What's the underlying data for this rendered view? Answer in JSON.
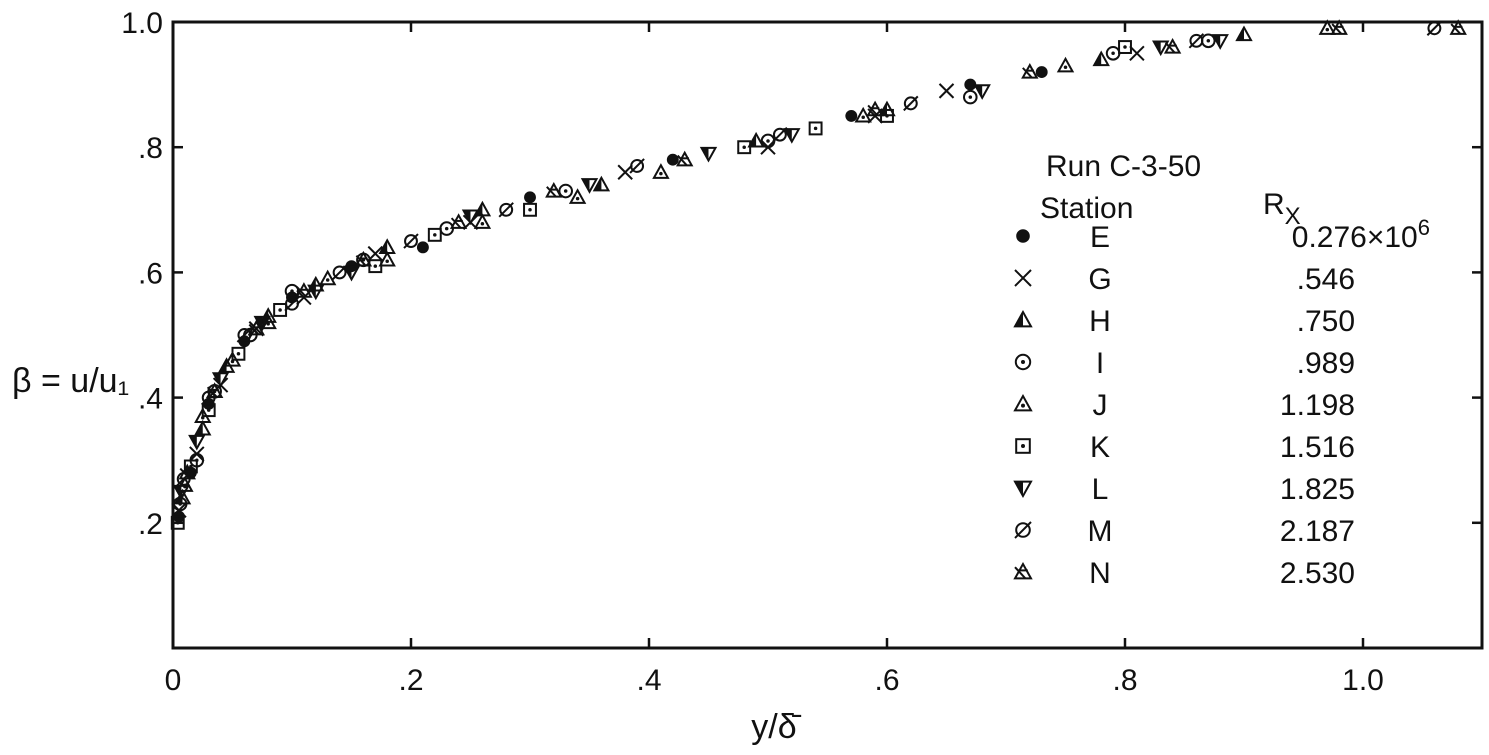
{
  "chart_data": {
    "type": "scatter",
    "title": "",
    "xlabel": "y/δ̄",
    "ylabel": "β = u/u₁",
    "xlim": [
      0,
      1.1
    ],
    "ylim": [
      0,
      1.0
    ],
    "grid": false,
    "x_ticks": [
      {
        "value": 0,
        "label": "0"
      },
      {
        "value": 0.2,
        "label": ".2"
      },
      {
        "value": 0.4,
        "label": ".4"
      },
      {
        "value": 0.6,
        "label": ".6"
      },
      {
        "value": 0.8,
        "label": ".8"
      },
      {
        "value": 1.0,
        "label": "1.0"
      }
    ],
    "y_ticks": [
      {
        "value": 0.2,
        "label": ".2"
      },
      {
        "value": 0.4,
        "label": ".4"
      },
      {
        "value": 0.6,
        "label": ".6"
      },
      {
        "value": 0.8,
        "label": ".8"
      },
      {
        "value": 1.0,
        "label": "1.0"
      }
    ],
    "legend": {
      "placement": "right",
      "title": "Run C-3-50",
      "col1_header": "Station",
      "col2_header": "R",
      "col2_header_sub": "X",
      "rows": [
        {
          "symbol": "filled-circle",
          "station": "E",
          "rx": "0.276×10",
          "rx_sup": "6"
        },
        {
          "symbol": "cross",
          "station": "G",
          "rx": ".546"
        },
        {
          "symbol": "half-filled-triangle",
          "station": "H",
          "rx": ".750"
        },
        {
          "symbol": "dotted-circle",
          "station": "I",
          "rx": ".989"
        },
        {
          "symbol": "dotted-triangle",
          "station": "J",
          "rx": "1.198"
        },
        {
          "symbol": "dotted-square",
          "station": "K",
          "rx": "1.516"
        },
        {
          "symbol": "half-filled-down-triangle",
          "station": "L",
          "rx": "1.825"
        },
        {
          "symbol": "slashed-circle",
          "station": "M",
          "rx": "2.187"
        },
        {
          "symbol": "double-triangle",
          "station": "N",
          "rx": "2.530"
        }
      ]
    },
    "series": [
      {
        "name": "E",
        "points": [
          [
            0.005,
            0.21
          ],
          [
            0.015,
            0.28
          ],
          [
            0.03,
            0.39
          ],
          [
            0.06,
            0.49
          ],
          [
            0.1,
            0.56
          ],
          [
            0.15,
            0.61
          ],
          [
            0.21,
            0.64
          ],
          [
            0.3,
            0.72
          ],
          [
            0.42,
            0.78
          ],
          [
            0.57,
            0.85
          ],
          [
            0.67,
            0.9
          ],
          [
            0.73,
            0.92
          ]
        ]
      },
      {
        "name": "G",
        "points": [
          [
            0.005,
            0.22
          ],
          [
            0.02,
            0.31
          ],
          [
            0.04,
            0.42
          ],
          [
            0.07,
            0.51
          ],
          [
            0.11,
            0.56
          ],
          [
            0.17,
            0.63
          ],
          [
            0.25,
            0.68
          ],
          [
            0.38,
            0.76
          ],
          [
            0.5,
            0.8
          ],
          [
            0.59,
            0.85
          ],
          [
            0.65,
            0.89
          ],
          [
            0.81,
            0.95
          ]
        ]
      },
      {
        "name": "H",
        "points": [
          [
            0.008,
            0.24
          ],
          [
            0.025,
            0.35
          ],
          [
            0.045,
            0.45
          ],
          [
            0.08,
            0.53
          ],
          [
            0.12,
            0.58
          ],
          [
            0.18,
            0.64
          ],
          [
            0.26,
            0.7
          ],
          [
            0.36,
            0.74
          ],
          [
            0.49,
            0.81
          ],
          [
            0.6,
            0.86
          ],
          [
            0.78,
            0.94
          ],
          [
            0.9,
            0.98
          ]
        ]
      },
      {
        "name": "I",
        "points": [
          [
            0.006,
            0.23
          ],
          [
            0.02,
            0.3
          ],
          [
            0.035,
            0.41
          ],
          [
            0.065,
            0.5
          ],
          [
            0.1,
            0.57
          ],
          [
            0.16,
            0.62
          ],
          [
            0.23,
            0.67
          ],
          [
            0.33,
            0.73
          ],
          [
            0.5,
            0.81
          ],
          [
            0.67,
            0.88
          ],
          [
            0.79,
            0.95
          ],
          [
            0.87,
            0.97
          ]
        ]
      },
      {
        "name": "J",
        "points": [
          [
            0.01,
            0.26
          ],
          [
            0.025,
            0.37
          ],
          [
            0.05,
            0.46
          ],
          [
            0.08,
            0.52
          ],
          [
            0.13,
            0.59
          ],
          [
            0.18,
            0.62
          ],
          [
            0.26,
            0.68
          ],
          [
            0.34,
            0.72
          ],
          [
            0.41,
            0.76
          ],
          [
            0.58,
            0.85
          ],
          [
            0.75,
            0.93
          ],
          [
            0.97,
            0.99
          ]
        ]
      },
      {
        "name": "K",
        "points": [
          [
            0.004,
            0.2
          ],
          [
            0.015,
            0.29
          ],
          [
            0.03,
            0.38
          ],
          [
            0.055,
            0.47
          ],
          [
            0.09,
            0.54
          ],
          [
            0.17,
            0.61
          ],
          [
            0.22,
            0.66
          ],
          [
            0.3,
            0.7
          ],
          [
            0.48,
            0.8
          ],
          [
            0.54,
            0.83
          ],
          [
            0.6,
            0.85
          ],
          [
            0.8,
            0.96
          ]
        ]
      },
      {
        "name": "L",
        "points": [
          [
            0.007,
            0.25
          ],
          [
            0.02,
            0.33
          ],
          [
            0.04,
            0.43
          ],
          [
            0.075,
            0.52
          ],
          [
            0.12,
            0.57
          ],
          [
            0.15,
            0.6
          ],
          [
            0.25,
            0.69
          ],
          [
            0.35,
            0.74
          ],
          [
            0.45,
            0.79
          ],
          [
            0.52,
            0.82
          ],
          [
            0.68,
            0.89
          ],
          [
            0.83,
            0.96
          ],
          [
            0.88,
            0.97
          ]
        ]
      },
      {
        "name": "M",
        "points": [
          [
            0.009,
            0.27
          ],
          [
            0.03,
            0.4
          ],
          [
            0.06,
            0.5
          ],
          [
            0.1,
            0.55
          ],
          [
            0.14,
            0.6
          ],
          [
            0.2,
            0.65
          ],
          [
            0.28,
            0.7
          ],
          [
            0.39,
            0.77
          ],
          [
            0.51,
            0.82
          ],
          [
            0.62,
            0.87
          ],
          [
            0.86,
            0.97
          ],
          [
            1.06,
            0.99
          ]
        ]
      },
      {
        "name": "N",
        "points": [
          [
            0.012,
            0.28
          ],
          [
            0.035,
            0.41
          ],
          [
            0.07,
            0.51
          ],
          [
            0.11,
            0.57
          ],
          [
            0.16,
            0.62
          ],
          [
            0.24,
            0.68
          ],
          [
            0.32,
            0.73
          ],
          [
            0.43,
            0.78
          ],
          [
            0.59,
            0.86
          ],
          [
            0.72,
            0.92
          ],
          [
            0.84,
            0.96
          ],
          [
            0.98,
            0.99
          ],
          [
            1.08,
            0.99
          ]
        ]
      }
    ]
  }
}
